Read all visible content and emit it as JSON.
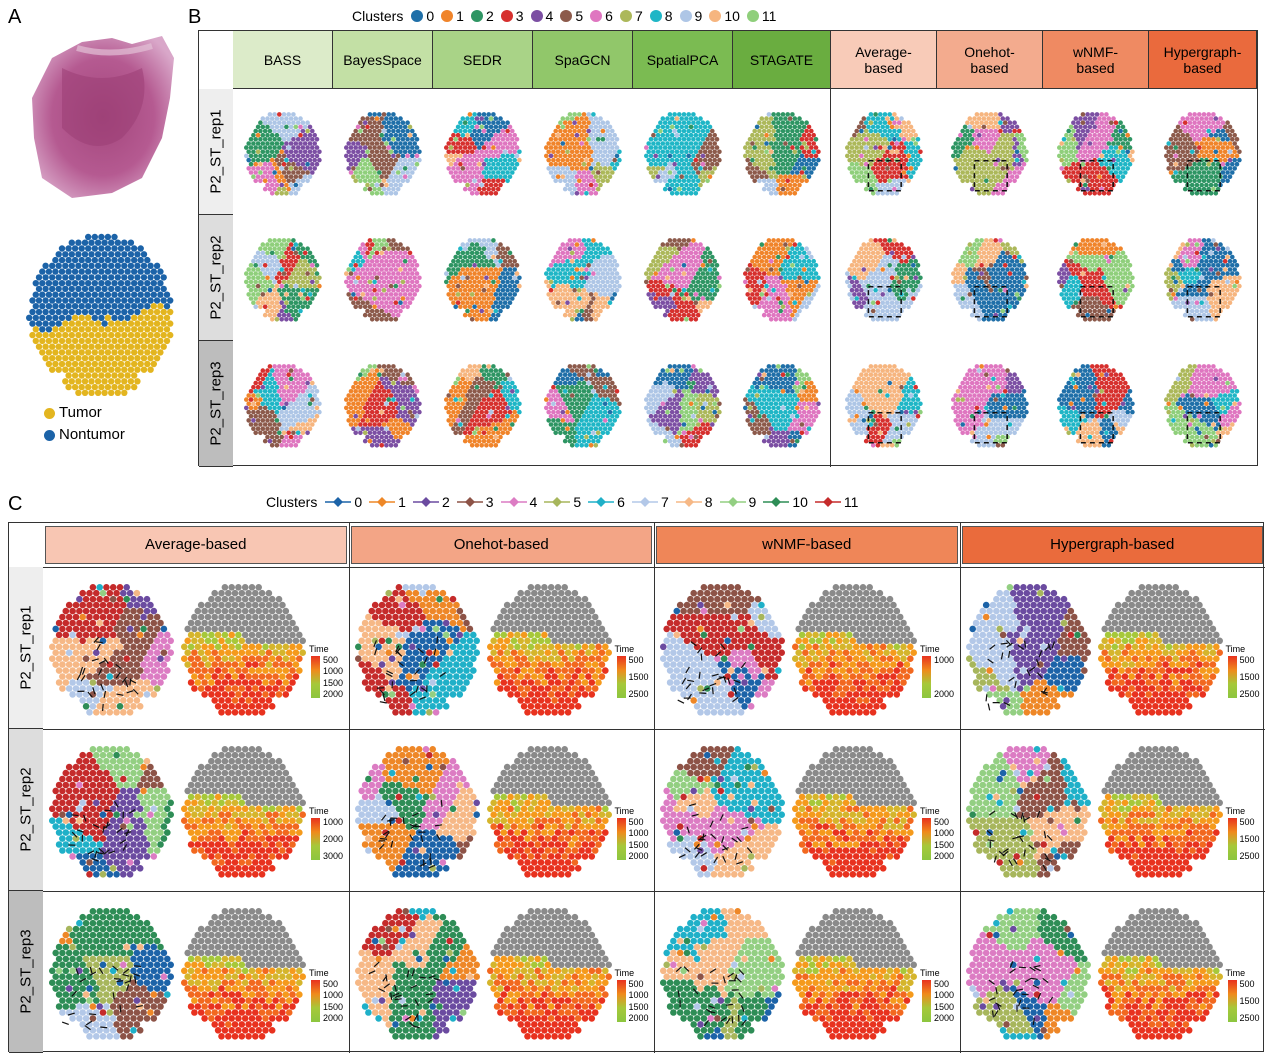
{
  "panels": {
    "a": "A",
    "b": "B",
    "c": "C"
  },
  "panel_a": {
    "legend": [
      {
        "label": "Tumor",
        "color": "#e3b51f"
      },
      {
        "label": "Nontumor",
        "color": "#1c63a8"
      }
    ]
  },
  "panel_b": {
    "legend_title": "Clusters",
    "clusters": [
      {
        "label": "0",
        "color": "#1f6fa8"
      },
      {
        "label": "1",
        "color": "#f0842a"
      },
      {
        "label": "2",
        "color": "#2e9563"
      },
      {
        "label": "3",
        "color": "#d6302e"
      },
      {
        "label": "4",
        "color": "#7c4fa3"
      },
      {
        "label": "5",
        "color": "#8c5a4b"
      },
      {
        "label": "6",
        "color": "#df76c0"
      },
      {
        "label": "7",
        "color": "#acb85a"
      },
      {
        "label": "8",
        "color": "#1fb6c6"
      },
      {
        "label": "9",
        "color": "#aec6e6"
      },
      {
        "label": "10",
        "color": "#f6b57f"
      },
      {
        "label": "11",
        "color": "#8fcf7b"
      }
    ],
    "methods": [
      {
        "label": "BASS",
        "color": "#dcebc9"
      },
      {
        "label": "BayesSpace",
        "color": "#c3e0a5"
      },
      {
        "label": "SEDR",
        "color": "#a9d387"
      },
      {
        "label": "SpaGCN",
        "color": "#91c76a"
      },
      {
        "label": "SpatialPCA",
        "color": "#7bbb52"
      },
      {
        "label": "STAGATE",
        "color": "#6aad40"
      },
      {
        "label": "Average-\nbased",
        "color": "#f8cbb8"
      },
      {
        "label": "Onehot-\nbased",
        "color": "#f3ab8e"
      },
      {
        "label": "wNMF-\nbased",
        "color": "#ef8a62"
      },
      {
        "label": "Hypergraph-\nbased",
        "color": "#ea6a3d"
      }
    ],
    "rows": [
      "P2_ST_rep1",
      "P2_ST_rep2",
      "P2_ST_rep3"
    ]
  },
  "panel_c": {
    "legend_title": "Clusters",
    "clusters": [
      {
        "label": "0",
        "color": "#1c63a8"
      },
      {
        "label": "1",
        "color": "#ee8727"
      },
      {
        "label": "2",
        "color": "#6b4ba0"
      },
      {
        "label": "3",
        "color": "#8d5347"
      },
      {
        "label": "4",
        "color": "#dc7cc3"
      },
      {
        "label": "5",
        "color": "#a7b65c"
      },
      {
        "label": "6",
        "color": "#1fb0c8"
      },
      {
        "label": "7",
        "color": "#b3c8e8"
      },
      {
        "label": "8",
        "color": "#f6b886"
      },
      {
        "label": "9",
        "color": "#93cf82"
      },
      {
        "label": "10",
        "color": "#2e8d56"
      },
      {
        "label": "11",
        "color": "#c52b2b"
      }
    ],
    "methods": [
      {
        "label": "Average-based",
        "color": "#f8c6b3"
      },
      {
        "label": "Onehot-based",
        "color": "#f3a586"
      },
      {
        "label": "wNMF-based",
        "color": "#ef8658"
      },
      {
        "label": "Hypergraph-based",
        "color": "#ea6b3c"
      }
    ],
    "rows": [
      "P2_ST_rep1",
      "P2_ST_rep2",
      "P2_ST_rep3"
    ],
    "time_title": "Time",
    "time_ticks": [
      [
        [
          "500",
          "1000",
          "1500",
          "2000"
        ],
        [
          "500",
          "1500",
          "2500"
        ],
        [
          "1000",
          "2000"
        ],
        [
          "500",
          "1500",
          "2500"
        ]
      ],
      [
        [
          "1000",
          "2000",
          "3000"
        ],
        [
          "500",
          "1000",
          "1500",
          "2000"
        ],
        [
          "500",
          "1000",
          "1500",
          "2000"
        ],
        [
          "500",
          "1500",
          "2500"
        ]
      ],
      [
        [
          "500",
          "1000",
          "1500",
          "2000"
        ],
        [
          "500",
          "1000",
          "1500",
          "2000"
        ],
        [
          "500",
          "1000",
          "1500",
          "2000"
        ],
        [
          "500",
          "1500",
          "2500"
        ]
      ]
    ]
  }
}
